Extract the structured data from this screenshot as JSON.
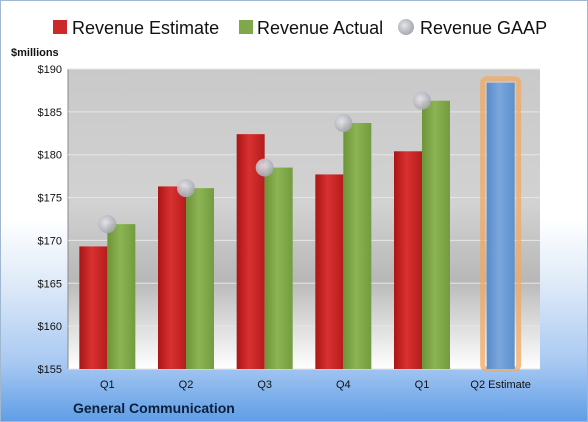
{
  "colors": {
    "estimate": "#cc2a2a",
    "actual": "#7fa84a",
    "gaap": "#b9b9c1",
    "forecast": "#6f9fd4",
    "forecast_glow": "#f0a860"
  },
  "company": "General Communication",
  "chart_data": {
    "type": "bar",
    "ylabel": "$millions",
    "ylim": [
      155,
      190
    ],
    "ytick_step": 5,
    "ytick_labels": [
      "$155",
      "$160",
      "$165",
      "$170",
      "$175",
      "$180",
      "$185",
      "$190"
    ],
    "categories": [
      "Q1",
      "Q2",
      "Q3",
      "Q4",
      "Q1",
      "Q2 Estimate"
    ],
    "grid": true,
    "legend": "top",
    "series": [
      {
        "name": "Revenue Estimate",
        "kind": "bar",
        "values": [
          169.3,
          176.3,
          182.4,
          177.7,
          180.4,
          188.4
        ]
      },
      {
        "name": "Revenue Actual",
        "kind": "bar",
        "values": [
          171.9,
          176.1,
          178.5,
          183.7,
          186.3,
          null
        ]
      },
      {
        "name": "Revenue GAAP",
        "kind": "marker",
        "values": [
          171.9,
          176.1,
          178.5,
          183.7,
          186.3,
          null
        ]
      }
    ]
  }
}
